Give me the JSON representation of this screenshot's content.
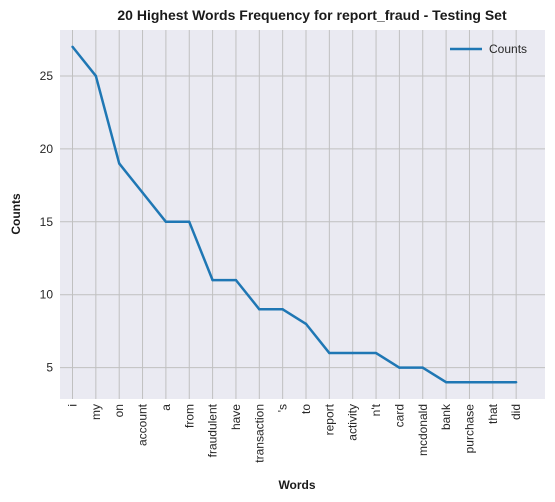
{
  "chart_data": {
    "type": "line",
    "title": "20 Highest Words Frequency for report_fraud - Testing Set",
    "xlabel": "Words",
    "ylabel": "Counts",
    "categories": [
      "i",
      "my",
      "on",
      "account",
      "a",
      "from",
      "fraudulent",
      "have",
      "transaction",
      "'s",
      "to",
      "report",
      "activity",
      "n't",
      "card",
      "mcdonald",
      "bank",
      "purchase",
      "that",
      "did"
    ],
    "series": [
      {
        "name": "Counts",
        "values": [
          27,
          25,
          19,
          17,
          15,
          15,
          11,
          11,
          9,
          9,
          8,
          6,
          6,
          6,
          5,
          5,
          4,
          4,
          4,
          4
        ]
      }
    ],
    "ylim": [
      2.85,
      28.15
    ],
    "yticks": [
      5,
      10,
      15,
      20,
      25
    ],
    "grid": true,
    "legend_position": "top-right",
    "colors": {
      "line": "#1f77b4",
      "plot_bg": "#eaeaf2",
      "grid": "#c0c0c0"
    }
  }
}
